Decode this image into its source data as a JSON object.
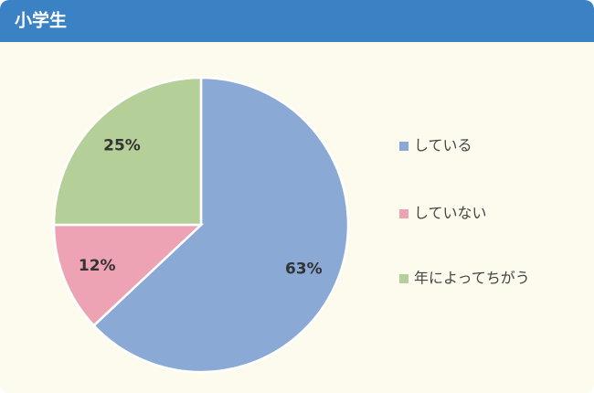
{
  "chart_data": {
    "type": "pie",
    "title": "小学生",
    "categories": [
      "している",
      "していない",
      "年によってちがう"
    ],
    "values": [
      63,
      12,
      25
    ],
    "value_labels": [
      "63%",
      "12%",
      "25%"
    ],
    "colors": [
      "#8aa9d4",
      "#eea3b4",
      "#b5cf98"
    ]
  }
}
